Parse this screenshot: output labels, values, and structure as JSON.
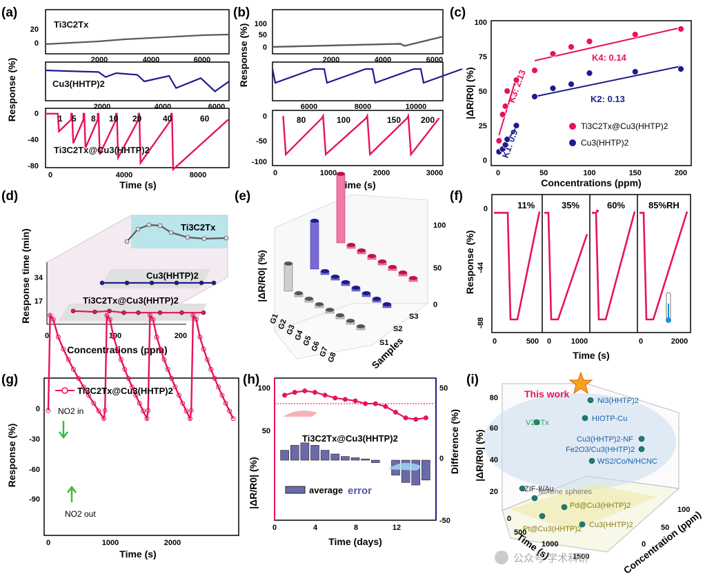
{
  "colors": {
    "mxene": "#5a5a5a",
    "mof": "#1c1c8c",
    "composite": "#e8115f",
    "humidity_text": "#20b040",
    "dashed": "#e8115f"
  },
  "watermark": "公众号 学术科研",
  "chart_data": [
    {
      "panel": "(a)",
      "type": "line",
      "ylabel": "Response (%)",
      "xlabel": "Time (s)",
      "subplots": [
        {
          "name": "Ti3C2Tx",
          "xticks": [
            "2000",
            "4000",
            "6000"
          ],
          "yticks": [
            "20",
            "0"
          ],
          "x": [
            0,
            1000,
            2000,
            3000,
            4000,
            5000,
            6000,
            7000
          ],
          "y": [
            0,
            2,
            4,
            7,
            9,
            11,
            13,
            14
          ]
        },
        {
          "name": "Cu3(HHTP)2",
          "xticks": [
            "2000",
            "4000",
            "6000"
          ],
          "yticks": [],
          "x": [
            0,
            1000,
            1500,
            1700,
            2000,
            2600,
            2800,
            3500,
            3700,
            4400,
            4800,
            5200
          ],
          "y": [
            0,
            -2,
            -3,
            -12,
            -5,
            -8,
            -20,
            -10,
            -32,
            -14,
            -38,
            -20
          ]
        },
        {
          "name": "Ti3C2Tx@Cu3(HHTP)2",
          "xticks": [
            "0",
            "4000",
            "8000"
          ],
          "yticks": [
            "0",
            "-40",
            "-80"
          ],
          "conc_labels": [
            "1",
            "5",
            "8",
            "10",
            "20",
            "40",
            "60"
          ],
          "x": [
            0,
            600,
            1300,
            1800,
            2600,
            3400,
            4300,
            5600,
            7000,
            8000,
            9000
          ],
          "y": [
            -5,
            -30,
            -48,
            -55,
            -65,
            -70,
            -78,
            -85,
            -88,
            -40,
            -10
          ]
        }
      ],
      "label_texts": [
        "Ti3C2Tx",
        "Cu3(HHTP)2",
        "Ti3C2Tx@Cu3(HHTP)2"
      ]
    },
    {
      "panel": "(b)",
      "type": "line",
      "ylabel": "Response (%)",
      "xlabel": "Time (s)",
      "subplots": [
        {
          "name": "Ti3C2Tx",
          "yticks": [
            "100",
            "50",
            "0"
          ],
          "xticks": [
            "2000",
            "4000",
            "6000"
          ]
        },
        {
          "name": "Cu3(HHTP)2",
          "yticks": [],
          "xticks": [
            "6000",
            "8000",
            "10000"
          ]
        },
        {
          "name": "Ti3C2Tx@Cu3(HHTP)2",
          "yticks": [
            "0",
            "-50",
            "-100"
          ],
          "xticks": [
            "0",
            "1000",
            "2000",
            "3000"
          ],
          "conc_labels": [
            "80",
            "100",
            "150",
            "200"
          ]
        }
      ]
    },
    {
      "panel": "(c)",
      "type": "scatter",
      "xlabel": "Concentrations (ppm)",
      "ylabel": "|ΔR/R0| (%)",
      "xlim": [
        0,
        200
      ],
      "ylim": [
        0,
        100
      ],
      "xticks": [
        "0",
        "50",
        "100",
        "150",
        "200"
      ],
      "yticks": [
        "0",
        "25",
        "50",
        "75",
        "100"
      ],
      "series": [
        {
          "name": "Ti3C2Tx@Cu3(HHTP)2",
          "x": [
            1,
            5,
            8,
            10,
            20,
            40,
            60,
            80,
            100,
            150,
            200
          ],
          "y": [
            14,
            33,
            39,
            50,
            58,
            65,
            77,
            82,
            86,
            91,
            95
          ]
        },
        {
          "name": "Cu3(HHTP)2",
          "x": [
            1,
            5,
            8,
            10,
            20,
            40,
            60,
            80,
            100,
            150,
            200
          ],
          "y": [
            6,
            8,
            11,
            15,
            25,
            46,
            52,
            55,
            63,
            64,
            66
          ]
        }
      ],
      "fits": [
        {
          "label": "K3: 2.13",
          "x": [
            1,
            20
          ],
          "y": [
            18,
            60
          ]
        },
        {
          "label": "K4: 0.14",
          "x": [
            40,
            200
          ],
          "y": [
            72,
            96
          ]
        },
        {
          "label": "K1: 0.9",
          "x": [
            1,
            20
          ],
          "y": [
            5,
            24
          ]
        },
        {
          "label": "K2: 0.13",
          "x": [
            40,
            200
          ],
          "y": [
            46,
            68
          ]
        }
      ]
    },
    {
      "panel": "(d)",
      "type": "line",
      "xlabel": "Concentrations (ppm)",
      "ylabel": "Response time (min)",
      "xticks": [
        "0",
        "100",
        "200"
      ],
      "yticks": [
        "17",
        "34"
      ],
      "series": [
        {
          "name": "Ti3C2Tx",
          "x": [
            20,
            40,
            60,
            80,
            100,
            130,
            160,
            200
          ],
          "y": [
            22,
            40,
            46,
            45,
            35,
            28,
            26,
            27
          ]
        },
        {
          "name": "Cu3(HHTP)2",
          "x": [
            20,
            60,
            100,
            140,
            180,
            200
          ],
          "y": [
            5,
            5,
            5,
            5,
            5,
            5
          ]
        },
        {
          "name": "Ti3C2Tx@Cu3(HHTP)2",
          "x": [
            20,
            50,
            70,
            90,
            110,
            140,
            170,
            200
          ],
          "y": [
            6,
            5,
            6,
            4,
            4,
            4,
            4,
            4
          ]
        }
      ]
    },
    {
      "panel": "(e)",
      "type": "bar",
      "zlabel": "|ΔR/R0| (%)",
      "ylabel": "Samples",
      "categories": [
        "G1",
        "G2",
        "G3",
        "G4",
        "G5",
        "G6",
        "G7",
        "G8"
      ],
      "samples": [
        "S1",
        "S2",
        "S3"
      ],
      "zticks": [
        "0",
        "50",
        "100"
      ],
      "series": [
        {
          "name": "S1",
          "values": [
            40,
            5,
            5,
            5,
            5,
            5,
            5,
            5
          ]
        },
        {
          "name": "S2",
          "values": [
            70,
            5,
            5,
            5,
            5,
            5,
            5,
            5
          ]
        },
        {
          "name": "S3",
          "values": [
            100,
            5,
            5,
            5,
            5,
            5,
            5,
            5
          ]
        }
      ]
    },
    {
      "panel": "(f)",
      "type": "line",
      "xlabel": "Time (s)",
      "ylabel": "Response (%)",
      "yticks": [
        "0",
        "-44",
        "-88"
      ],
      "conditions": [
        "11%",
        "35%",
        "60%",
        "85%RH"
      ],
      "xticks_groups": [
        [
          "0",
          "500"
        ],
        [
          "0",
          "1000"
        ],
        [],
        [
          "0",
          "2000"
        ]
      ]
    },
    {
      "panel": "(g)",
      "type": "line",
      "xlabel": "Time (s)",
      "ylabel": "Response (%)",
      "legend": "Ti3C2Tx@Cu3(HHTP)2",
      "annotations": [
        "NO2 in",
        "NO2 out"
      ],
      "xticks": [
        "0",
        "1000",
        "2000"
      ],
      "yticks": [
        "0",
        "-30",
        "-60",
        "-90"
      ],
      "x": [
        0,
        80,
        150,
        900,
        920,
        1000,
        1600,
        1620,
        1700,
        2300,
        2320,
        2400,
        3000
      ],
      "y": [
        0,
        -92,
        -85,
        10,
        -92,
        -85,
        10,
        -92,
        -85,
        10,
        -92,
        -85,
        10
      ]
    },
    {
      "panel": "(h)",
      "type": "line",
      "xlabel": "Time (days)",
      "ylabel": "|ΔR/R0| (%)",
      "ylabel2": "Difference (%)",
      "inner_label": "Ti3C2Tx@Cu3(HHTP)2",
      "legend": [
        "average",
        "error"
      ],
      "xticks": [
        "0",
        "4",
        "8",
        "12"
      ],
      "yticks": [
        "50",
        "100"
      ],
      "yticks2": [
        "0",
        "50",
        "-50"
      ],
      "x": [
        1,
        2,
        3,
        4,
        5,
        6,
        7,
        8,
        9,
        10,
        11,
        12,
        13,
        14,
        15
      ],
      "response": [
        88,
        90,
        91,
        90,
        88,
        86,
        85,
        84,
        82,
        82,
        80,
        76,
        72,
        71,
        72
      ],
      "difference": [
        8,
        12,
        14,
        12,
        8,
        5,
        3,
        2,
        1,
        -2,
        0,
        -12,
        -18,
        -20,
        -16
      ],
      "mean_line": 82
    },
    {
      "panel": "(i)",
      "type": "scatter",
      "xlabel": "Time (s)",
      "ylabel": "|ΔR/R0| (%)",
      "zlabel": "Concentration (ppm)",
      "xticks": [
        "0",
        "500",
        "1000",
        "1500"
      ],
      "yticks": [
        "20",
        "40",
        "60",
        "80"
      ],
      "zticks": [
        "0",
        "50",
        "100"
      ],
      "highlight": "This work",
      "points": [
        "Ni3(HHTP)2",
        "HIOTP-Cu",
        "V2CTx",
        "Cu3(HHTP)2-NF",
        "Fe2O3/Cu3(HHTP)2",
        "WS2/Co/N/HCNC",
        "ZIF-8/Au",
        "MXene spheres",
        "Pd@Cu3(HHTP)2",
        "Pt@Cu3(HHTP)2",
        "Cu3(HHTP)2"
      ]
    }
  ]
}
